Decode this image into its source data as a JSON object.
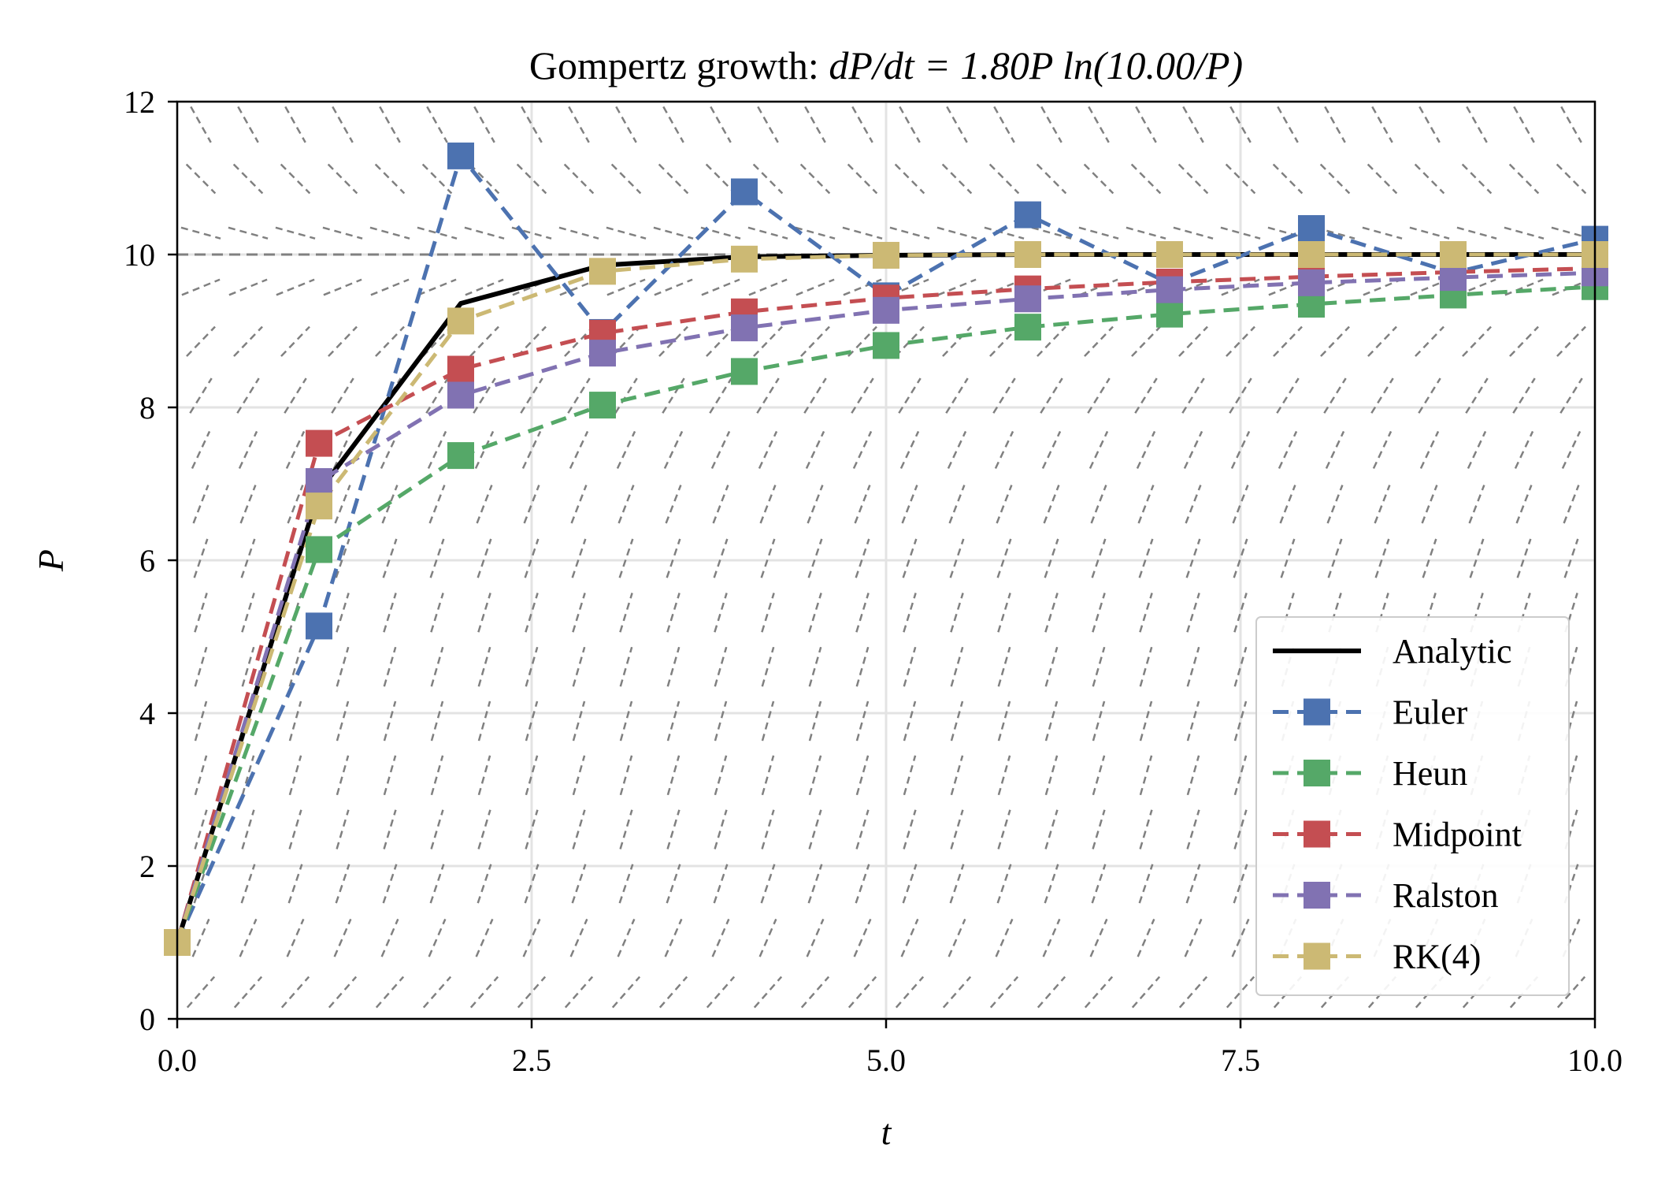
{
  "chart_data": {
    "type": "line",
    "title_prefix": "Gompertz growth: ",
    "title_math": "dP/dt = 1.80P ln(10.00/P)",
    "title": "Gompertz growth: dP/dt = 1.80P ln(10.00/P)",
    "xlabel": "t",
    "ylabel": "P",
    "xlim": [
      0,
      10
    ],
    "ylim": [
      0,
      12
    ],
    "xticks": [
      0,
      2.5,
      5,
      7.5,
      10
    ],
    "xtick_labels": [
      "0.0",
      "2.5",
      "5.0",
      "7.5",
      "10.0"
    ],
    "yticks": [
      0,
      2,
      4,
      6,
      8,
      10,
      12
    ],
    "ytick_labels": [
      "0",
      "2",
      "4",
      "6",
      "8",
      "10",
      "12"
    ],
    "grid": true,
    "legend_position": "lower right",
    "carrying_capacity": 10,
    "growth_rate": 1.8,
    "x": [
      0,
      1,
      2,
      3,
      4,
      5,
      6,
      7,
      8,
      9,
      10
    ],
    "series": [
      {
        "name": "Analytic",
        "color": "#000000",
        "style": "solid",
        "marker": "none",
        "values": [
          1.0,
          6.9,
          9.36,
          9.86,
          9.97,
          9.99,
          10.0,
          10.0,
          10.0,
          10.0,
          10.0
        ]
      },
      {
        "name": "Euler",
        "color": "#4c72b0",
        "style": "dashed",
        "marker": "square",
        "values": [
          1.0,
          5.14,
          11.29,
          8.98,
          10.82,
          9.46,
          10.52,
          9.62,
          10.34,
          9.76,
          10.2
        ]
      },
      {
        "name": "Heun",
        "color": "#55a868",
        "style": "dashed",
        "marker": "square",
        "values": [
          1.0,
          6.14,
          7.37,
          8.03,
          8.47,
          8.81,
          9.05,
          9.22,
          9.35,
          9.47,
          9.58
        ]
      },
      {
        "name": "Midpoint",
        "color": "#c44e52",
        "style": "dashed",
        "marker": "square",
        "values": [
          1.0,
          7.53,
          8.5,
          8.97,
          9.25,
          9.43,
          9.55,
          9.64,
          9.71,
          9.77,
          9.82
        ]
      },
      {
        "name": "Ralston",
        "color": "#8172b2",
        "style": "dashed",
        "marker": "square",
        "values": [
          1.0,
          7.03,
          8.16,
          8.71,
          9.04,
          9.27,
          9.42,
          9.54,
          9.63,
          9.7,
          9.76
        ]
      },
      {
        "name": "RK(4)",
        "color": "#ccb974",
        "style": "dashed",
        "marker": "square",
        "values": [
          1.0,
          6.71,
          9.13,
          9.78,
          9.94,
          9.99,
          10.0,
          10.0,
          10.0,
          10.0,
          10.0
        ]
      }
    ],
    "slope_field": {
      "color": "#808080",
      "columns": 30,
      "rows": 17
    }
  }
}
